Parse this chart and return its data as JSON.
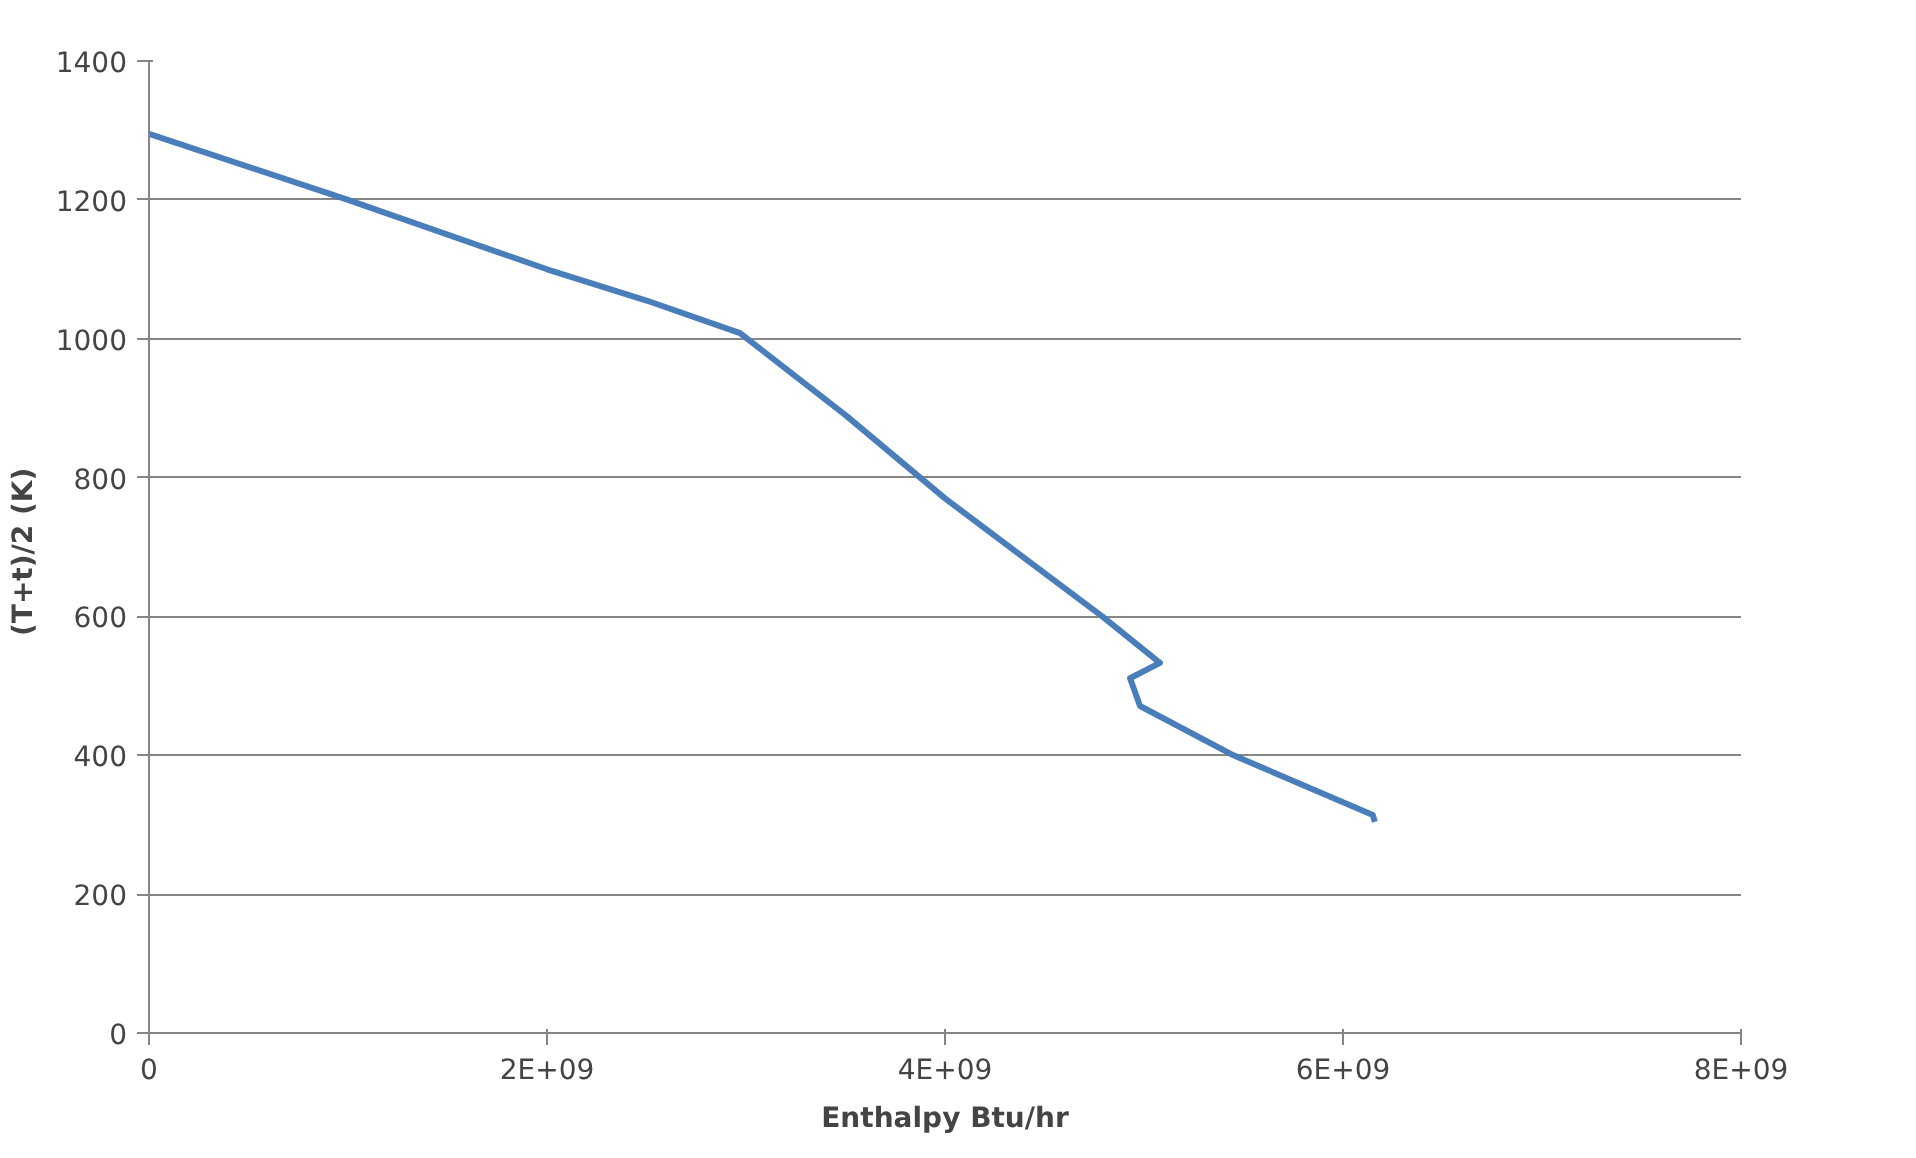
{
  "chart_data": {
    "type": "line",
    "xlabel": "Enthalpy Btu/hr",
    "ylabel": "(T+t)/2  (K)",
    "x": [
      0,
      1000000000,
      2000000000,
      2500000000,
      2970000000,
      3500000000,
      4000000000,
      4790000000,
      5080000000,
      4930000000,
      4980000000,
      5450000000,
      6150000000,
      6160000000
    ],
    "series": [
      {
        "color": "#4a7ebb",
        "values": [
          1295,
          1200,
          1100,
          1055,
          1008,
          890,
          770,
          600,
          533,
          511,
          471,
          400,
          314,
          304
        ]
      }
    ],
    "xlim": [
      0,
      8000000000
    ],
    "xticks": [
      0,
      {
        "value": 2000000000,
        "label": "2E+09"
      },
      {
        "value": 4000000000,
        "label": "4E+09"
      },
      {
        "value": 6000000000,
        "label": "6E+09"
      },
      {
        "value": 8000000000,
        "label": "8E+09"
      }
    ],
    "ylim": [
      0,
      1400
    ],
    "yticks": [
      0,
      200,
      400,
      600,
      800,
      1000,
      1200,
      1400
    ],
    "grid": "y",
    "marker": "none",
    "line_style": "solid"
  }
}
